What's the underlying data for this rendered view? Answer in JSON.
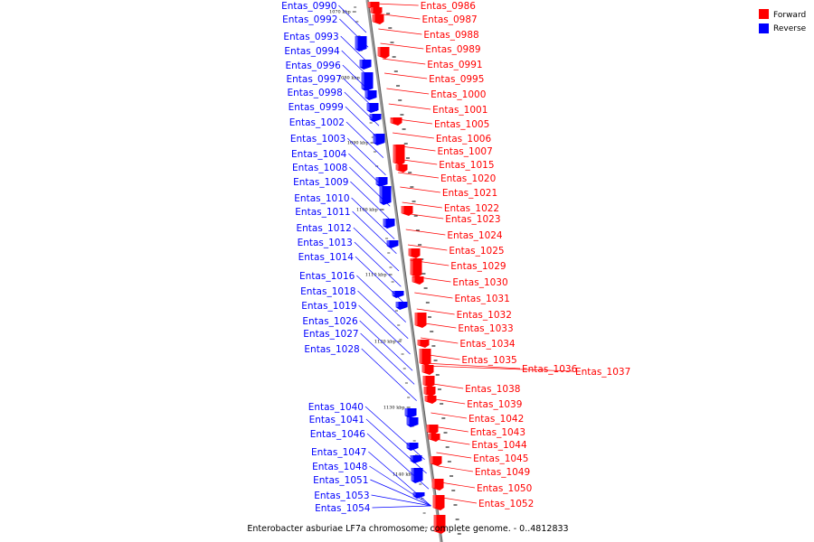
{
  "caption": "Enterobacter asburiae LF7a chromosome, complete genome. - 0..4812833",
  "legend": {
    "forward_label": "Forward",
    "reverse_label": "Reverse",
    "forward_color": "#ff0000",
    "reverse_color": "#0000ff"
  },
  "scale_labels": [
    "1070 kbp",
    "1080 kbp",
    "1090 kbp",
    "1100 kbp",
    "1110 kbp",
    "1120 kbp",
    "1130 kbp",
    "1140 kbp"
  ],
  "reverse_genes": [
    "Entas_0990",
    "Entas_0992",
    "Entas_0993",
    "Entas_0994",
    "Entas_0996",
    "Entas_0997",
    "Entas_0998",
    "Entas_0999",
    "Entas_1002",
    "Entas_1003",
    "Entas_1004",
    "Entas_1008",
    "Entas_1009",
    "Entas_1010",
    "Entas_1011",
    "Entas_1012",
    "Entas_1013",
    "Entas_1014",
    "Entas_1016",
    "Entas_1018",
    "Entas_1019",
    "Entas_1026",
    "Entas_1027",
    "Entas_1028",
    "Entas_1040",
    "Entas_1041",
    "Entas_1046",
    "Entas_1047",
    "Entas_1048",
    "Entas_1051",
    "Entas_1053",
    "Entas_1054"
  ],
  "forward_genes": [
    "Entas_0986",
    "Entas_0987",
    "Entas_0988",
    "Entas_0989",
    "Entas_0991",
    "Entas_0995",
    "Entas_1000",
    "Entas_1001",
    "Entas_1005",
    "Entas_1006",
    "Entas_1007",
    "Entas_1015",
    "Entas_1020",
    "Entas_1021",
    "Entas_1022",
    "Entas_1023",
    "Entas_1024",
    "Entas_1025",
    "Entas_1029",
    "Entas_1030",
    "Entas_1031",
    "Entas_1032",
    "Entas_1033",
    "Entas_1034",
    "Entas_1035",
    "Entas_1036",
    "Entas_1037",
    "Entas_1038",
    "Entas_1039",
    "Entas_1042",
    "Entas_1043",
    "Entas_1044",
    "Entas_1045",
    "Entas_1049",
    "Entas_1050",
    "Entas_1052"
  ]
}
